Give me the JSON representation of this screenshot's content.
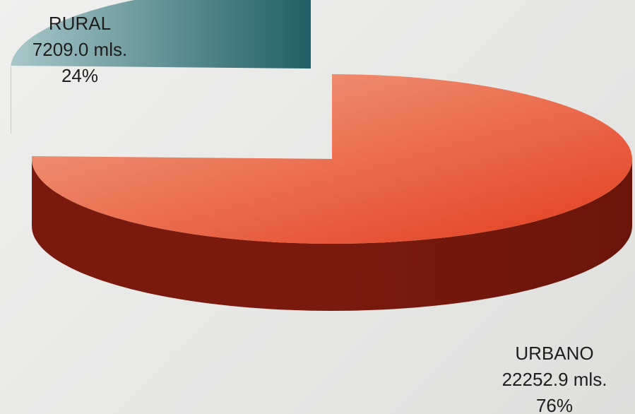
{
  "chart_data": {
    "type": "pie",
    "style": "3d-exploded",
    "slices": [
      {
        "name": "RURAL",
        "value": 7209.0,
        "value_label": "7209.0 mls.",
        "percent": 24,
        "percent_label": "24%",
        "color_top_light": "#a9c7c9",
        "color_top_dark": "#1f5f67",
        "color_side": "#1d4f56"
      },
      {
        "name": "URBANO",
        "value": 22252.9,
        "value_label": "22252.9 mls.",
        "percent": 76,
        "percent_label": "76%",
        "color_top_light": "#f3a488",
        "color_top_dark": "#e33d1c",
        "color_side": "#7a1a0f"
      }
    ]
  }
}
